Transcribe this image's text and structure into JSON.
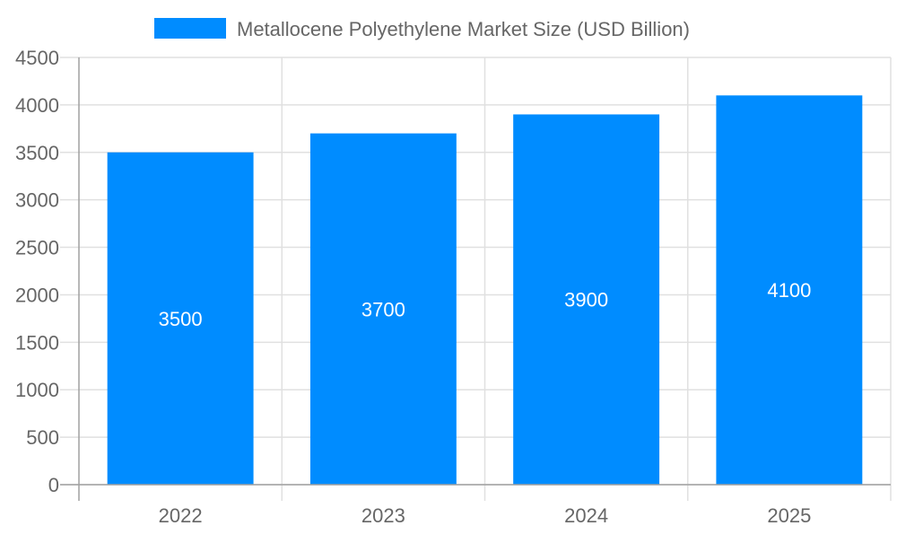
{
  "chart_data": {
    "type": "bar",
    "title": "",
    "xlabel": "",
    "ylabel": "",
    "categories": [
      "2022",
      "2023",
      "2024",
      "2025"
    ],
    "series": [
      {
        "name": "Metallocene Polyethylene Market Size (USD Billion)",
        "values": [
          3500,
          3700,
          3900,
          4100
        ],
        "color": "#008cff"
      }
    ],
    "ylim": [
      0,
      4500
    ],
    "yticks": [
      0,
      500,
      1000,
      1500,
      2000,
      2500,
      3000,
      3500,
      4000,
      4500
    ],
    "grid": true,
    "legend": "top-center",
    "data_labels": true
  }
}
